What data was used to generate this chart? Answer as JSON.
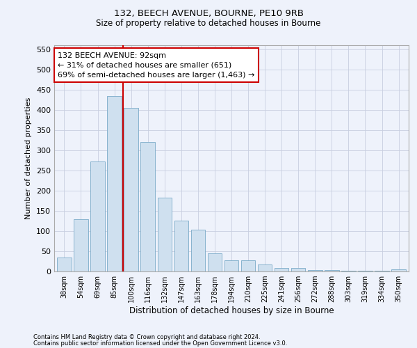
{
  "title1": "132, BEECH AVENUE, BOURNE, PE10 9RB",
  "title2": "Size of property relative to detached houses in Bourne",
  "xlabel": "Distribution of detached houses by size in Bourne",
  "ylabel": "Number of detached properties",
  "categories": [
    "38sqm",
    "54sqm",
    "69sqm",
    "85sqm",
    "100sqm",
    "116sqm",
    "132sqm",
    "147sqm",
    "163sqm",
    "178sqm",
    "194sqm",
    "210sqm",
    "225sqm",
    "241sqm",
    "256sqm",
    "272sqm",
    "288sqm",
    "303sqm",
    "319sqm",
    "334sqm",
    "350sqm"
  ],
  "values": [
    35,
    130,
    272,
    435,
    405,
    320,
    183,
    125,
    103,
    45,
    28,
    28,
    17,
    8,
    9,
    3,
    4,
    2,
    2,
    2,
    6
  ],
  "bar_color": "#cfe0ef",
  "bar_edge_color": "#7aaac8",
  "red_line_index": 3.5,
  "annotation_text": "132 BEECH AVENUE: 92sqm\n← 31% of detached houses are smaller (651)\n69% of semi-detached houses are larger (1,463) →",
  "annotation_box_color": "#ffffff",
  "annotation_box_edge_color": "#cc0000",
  "vline_color": "#cc0000",
  "ylim": [
    0,
    560
  ],
  "yticks": [
    0,
    50,
    100,
    150,
    200,
    250,
    300,
    350,
    400,
    450,
    500,
    550
  ],
  "footer1": "Contains HM Land Registry data © Crown copyright and database right 2024.",
  "footer2": "Contains public sector information licensed under the Open Government Licence v3.0.",
  "bg_color": "#eef2fb",
  "plot_bg_color": "#eef2fb",
  "grid_color": "#c8cfe0"
}
